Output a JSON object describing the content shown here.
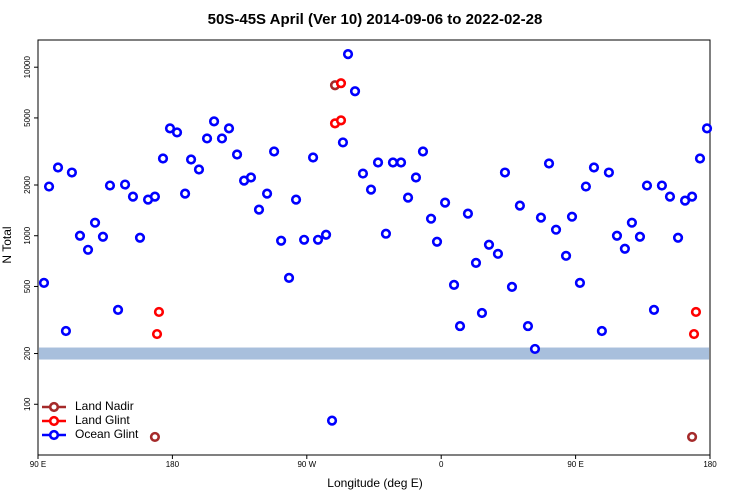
{
  "chart_data": {
    "type": "scatter",
    "title": "50S-45S April (Ver 10)   2014-09-06 to 2022-02-28",
    "x_label": "Longitude (deg E)",
    "y_label": "N Total",
    "log_y": true,
    "xlim": [
      90,
      540
    ],
    "xticks": [
      {
        "value": 90,
        "label": "90 E"
      },
      180,
      {
        "value": 270,
        "label": "90 W"
      },
      {
        "value": 360,
        "label": "0"
      },
      {
        "value": 450,
        "label": "90 E"
      },
      {
        "value": 540,
        "label": "180"
      }
    ],
    "ylim": [
      50,
      14500
    ],
    "yticks": [
      100,
      200,
      500,
      1000,
      2000,
      5000,
      10000
    ],
    "threshold": 200,
    "threshold_color": "#a8bfdc",
    "legend": "bottom-left",
    "series": [
      {
        "name": "Land Nadir",
        "color": "#a52a2a",
        "x": [
          288.9,
          168.3,
          528.0
        ],
        "values": [
          7812,
          64,
          64
        ]
      },
      {
        "name": "Land Glint",
        "color": "#ff0000",
        "x": [
          292.9,
          288.9,
          292.9,
          171.0,
          169.7,
          530.6,
          529.3
        ],
        "values": [
          8035,
          4642,
          4838,
          353,
          261,
          353,
          261
        ]
      },
      {
        "name": "Ocean Glint",
        "color": "#0000ff",
        "x": [
          94.0,
          97.4,
          103.4,
          108.7,
          112.7,
          118.1,
          123.5,
          128.2,
          133.5,
          138.2,
          143.6,
          148.3,
          153.6,
          158.3,
          163.7,
          168.3,
          173.7,
          178.4,
          183.1,
          188.5,
          192.5,
          197.8,
          203.2,
          207.9,
          213.2,
          217.9,
          223.3,
          228.0,
          232.6,
          238.0,
          243.4,
          248.1,
          252.8,
          258.1,
          262.8,
          268.2,
          274.2,
          277.5,
          282.9,
          286.9,
          294.2,
          297.6,
          302.3,
          307.6,
          313.0,
          317.7,
          323.0,
          327.7,
          333.1,
          337.8,
          343.1,
          347.8,
          353.2,
          357.2,
          362.6,
          368.6,
          372.6,
          377.9,
          383.3,
          387.3,
          392.0,
          398.0,
          402.7,
          407.4,
          412.7,
          418.1,
          422.8,
          426.8,
          432.2,
          436.9,
          443.6,
          447.6,
          452.9,
          456.9,
          462.3,
          467.6,
          472.3,
          477.7,
          483.0,
          487.7,
          493.1,
          497.8,
          502.5,
          507.8,
          513.2,
          518.6,
          523.3,
          528.0,
          533.3,
          538.0
        ],
        "values": [
          525,
          1958,
          2540,
          272,
          2371,
          1000,
          825,
          1195,
          986,
          1985,
          363,
          2012,
          1706,
          973,
          1637,
          1706,
          2873,
          4335,
          4102,
          1778,
          2834,
          2471,
          3778,
          4771,
          3778,
          4335,
          3035,
          2124,
          2215,
          1428,
          1778,
          3162,
          934,
          562,
          1637,
          946,
          2912,
          946,
          1014,
          80,
          3578,
          11950,
          7197,
          2338,
          1878,
          2720,
          1028,
          2720,
          2720,
          1683,
          2215,
          3162,
          1262,
          921,
          1572,
          511,
          291,
          1352,
          690,
          348,
          884,
          781,
          2371,
          497,
          1509,
          291,
          213,
          1280,
          2683,
          1086,
          760,
          1297,
          525,
          1958,
          2540,
          272,
          2371,
          1000,
          837,
          1195,
          986,
          1985,
          363,
          1985,
          1706,
          973,
          1616,
          1706,
          2873,
          4335
        ]
      }
    ]
  }
}
